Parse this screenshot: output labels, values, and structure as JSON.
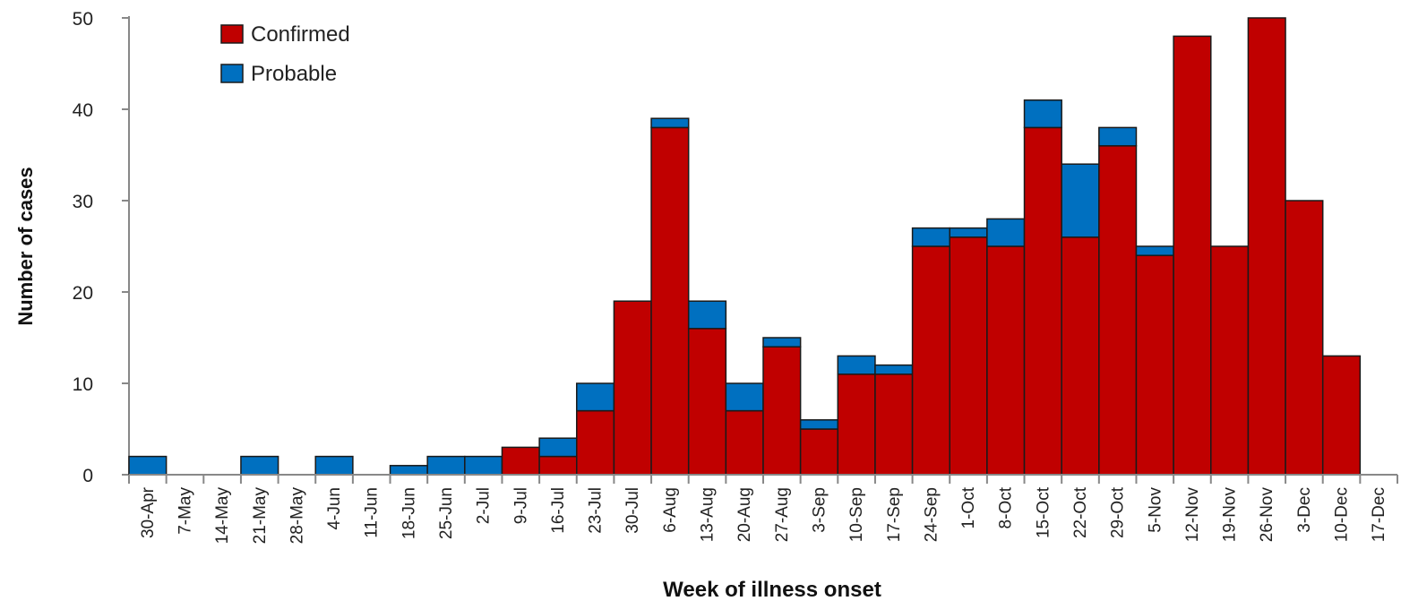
{
  "chart_data": {
    "type": "bar",
    "stacked": true,
    "title": "",
    "xlabel": "Week of illness onset",
    "ylabel": "Number of cases",
    "ylim": [
      0,
      50
    ],
    "yticks": [
      0,
      10,
      20,
      30,
      40,
      50
    ],
    "grid": false,
    "legend_position": "top-left",
    "categories": [
      "30-Apr",
      "7-May",
      "14-May",
      "21-May",
      "28-May",
      "4-Jun",
      "11-Jun",
      "18-Jun",
      "25-Jun",
      "2-Jul",
      "9-Jul",
      "16-Jul",
      "23-Jul",
      "30-Jul",
      "6-Aug",
      "13-Aug",
      "20-Aug",
      "27-Aug",
      "3-Sep",
      "10-Sep",
      "17-Sep",
      "24-Sep",
      "1-Oct",
      "8-Oct",
      "15-Oct",
      "22-Oct",
      "29-Oct",
      "5-Nov",
      "12-Nov",
      "19-Nov",
      "26-Nov",
      "3-Dec",
      "10-Dec",
      "17-Dec"
    ],
    "series": [
      {
        "name": "Confirmed",
        "color": "#c00000",
        "values": [
          0,
          0,
          0,
          0,
          0,
          0,
          0,
          0,
          0,
          0,
          3,
          2,
          7,
          19,
          38,
          16,
          7,
          14,
          5,
          11,
          11,
          25,
          26,
          25,
          38,
          26,
          36,
          24,
          48,
          25,
          50,
          30,
          13,
          0
        ]
      },
      {
        "name": "Probable",
        "color": "#0070c0",
        "values": [
          2,
          0,
          0,
          2,
          0,
          2,
          0,
          1,
          2,
          2,
          0,
          2,
          3,
          0,
          1,
          3,
          3,
          1,
          1,
          2,
          1,
          2,
          1,
          3,
          3,
          8,
          2,
          1,
          0,
          0,
          0,
          0,
          0,
          0
        ]
      }
    ]
  }
}
